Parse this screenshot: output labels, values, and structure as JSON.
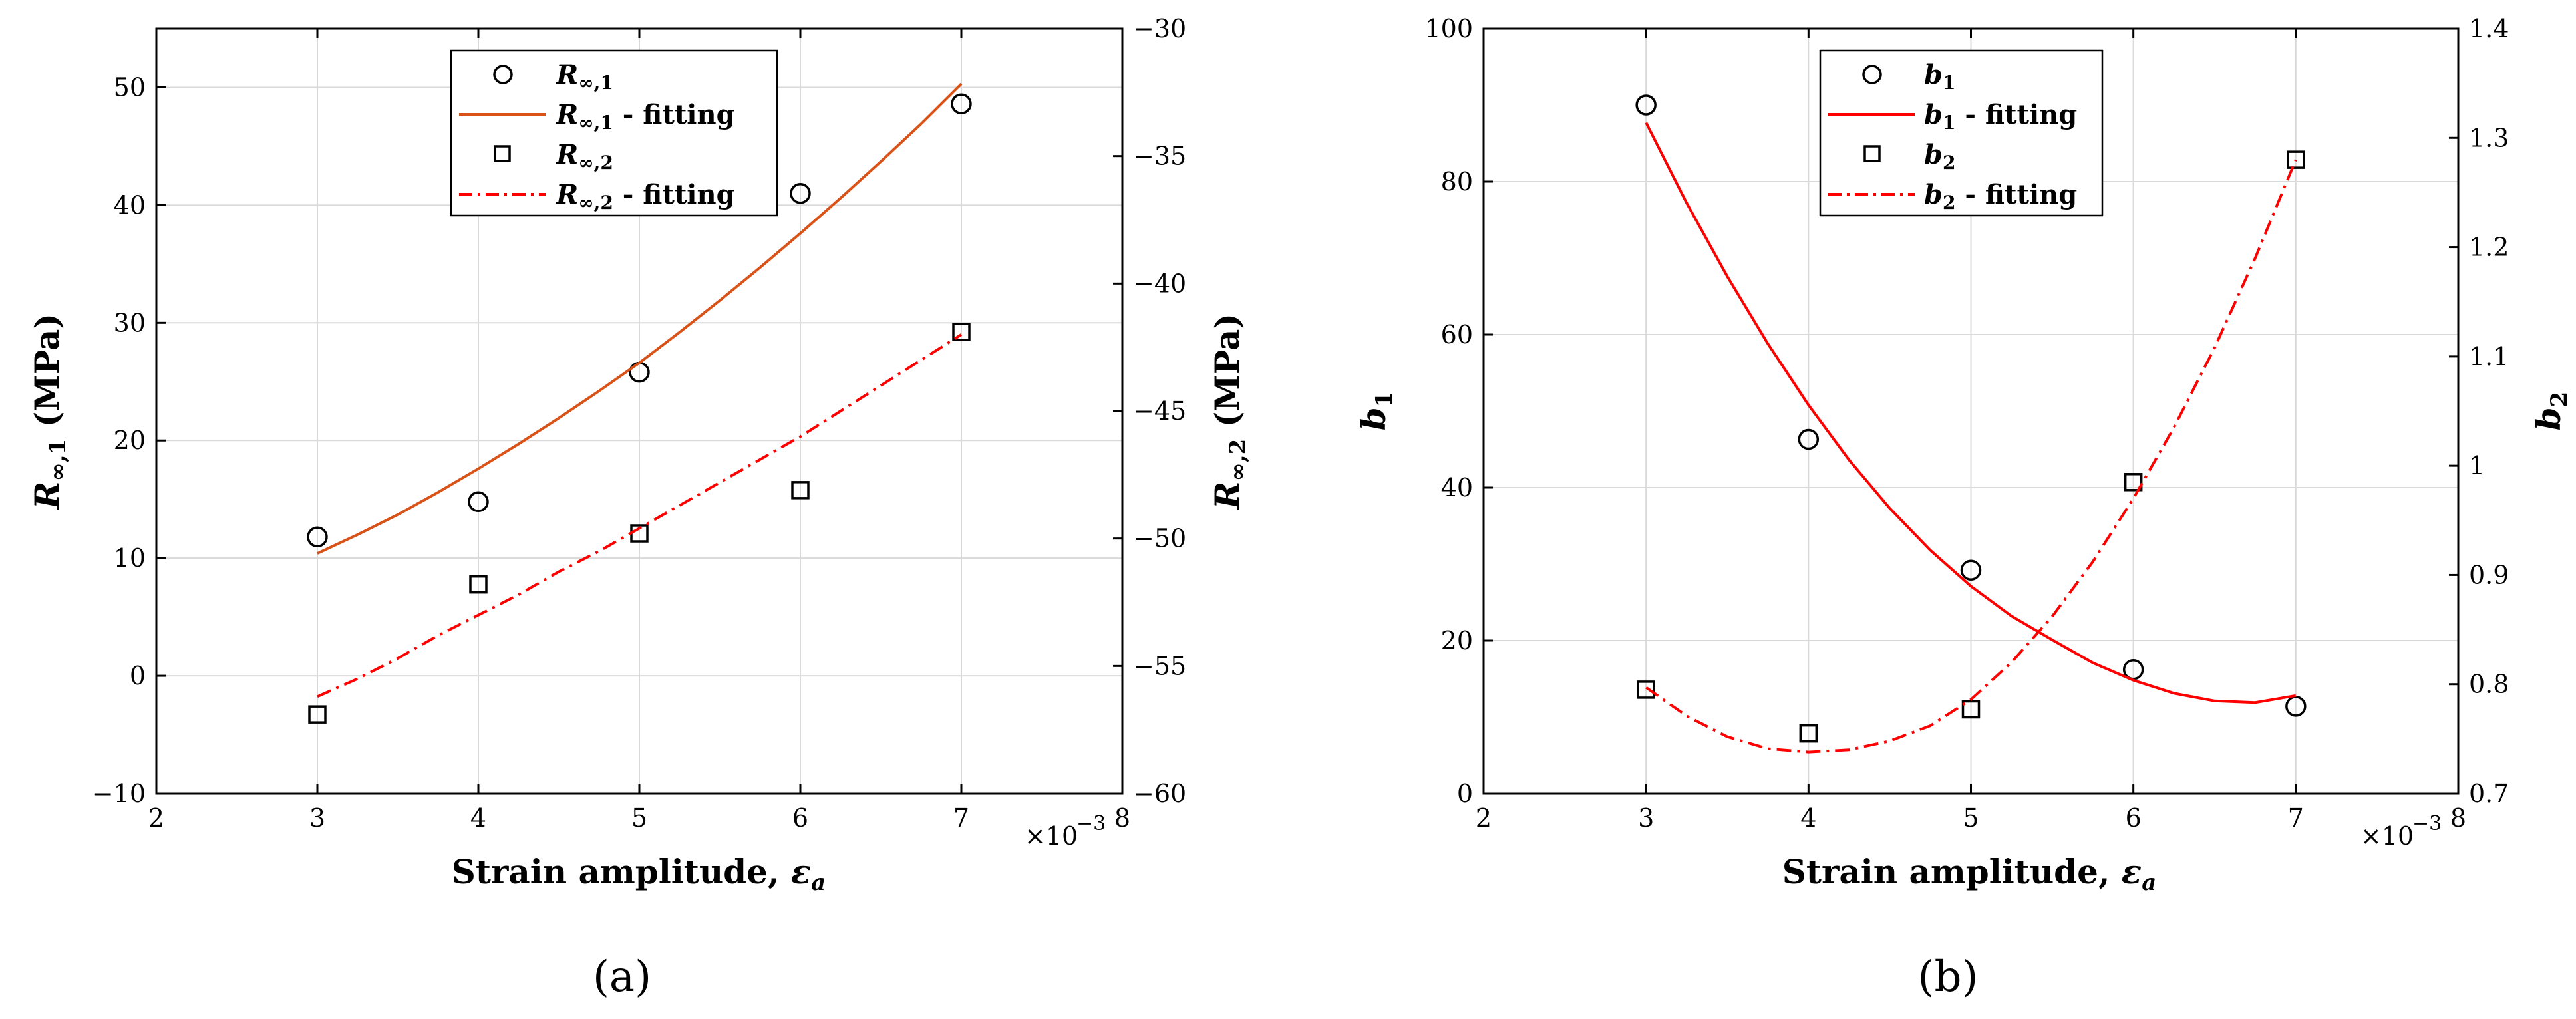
{
  "chart_data": [
    {
      "type": "scatter",
      "panel_label": "(a)",
      "xlabel": "Strain amplitude, ε_a",
      "x_multiplier": "×10^−3",
      "xlim": [
        2,
        8
      ],
      "xticks": [
        2,
        3,
        4,
        5,
        6,
        7,
        8
      ],
      "ylabel": "R_∞,1 (MPa)",
      "ylim": [
        -10,
        55
      ],
      "yticks": [
        -10,
        0,
        10,
        20,
        30,
        40,
        50
      ],
      "ylabel_right": "R_∞,2 (MPa)",
      "ylim_right": [
        -60,
        -30
      ],
      "yticks_right": [
        -60,
        -55,
        -50,
        -45,
        -40,
        -35,
        -30
      ],
      "grid": true,
      "legend_position": "top-center",
      "series": [
        {
          "name": "R_∞,1",
          "axis": "left",
          "style": "marker-circle",
          "x": [
            3,
            4,
            5,
            6,
            7
          ],
          "y": [
            11.8,
            14.8,
            25.8,
            41.0,
            48.6
          ]
        },
        {
          "name": "R_∞,1 - fitting",
          "axis": "left",
          "style": "line-solid",
          "color": "#d95319",
          "x": [
            3.0,
            3.25,
            3.5,
            3.75,
            4.0,
            4.25,
            4.5,
            4.75,
            5.0,
            5.25,
            5.5,
            5.75,
            6.0,
            6.25,
            6.5,
            6.75,
            7.0
          ],
          "y": [
            10.4,
            12.0,
            13.7,
            15.6,
            17.6,
            19.7,
            21.9,
            24.2,
            26.6,
            29.2,
            31.9,
            34.7,
            37.6,
            40.6,
            43.7,
            46.9,
            50.3
          ]
        },
        {
          "name": "R_∞,2",
          "axis": "right",
          "style": "marker-square",
          "x": [
            3,
            4,
            5,
            6,
            7
          ],
          "y": [
            -56.9,
            -51.8,
            -49.8,
            -48.1,
            -41.9
          ]
        },
        {
          "name": "R_∞,2 - fitting",
          "axis": "right",
          "style": "line-dashdot",
          "color": "#ff0000",
          "x": [
            3.0,
            3.25,
            3.5,
            3.75,
            4.0,
            4.25,
            4.5,
            4.75,
            5.0,
            5.25,
            5.5,
            5.75,
            6.0,
            6.25,
            6.5,
            6.75,
            7.0
          ],
          "y": [
            -56.2,
            -55.5,
            -54.7,
            -53.8,
            -53.0,
            -52.2,
            -51.3,
            -50.5,
            -49.6,
            -48.7,
            -47.8,
            -46.9,
            -46.0,
            -45.0,
            -44.0,
            -43.0,
            -42.0
          ]
        }
      ]
    },
    {
      "type": "scatter",
      "panel_label": "(b)",
      "xlabel": "Strain amplitude, ε_a",
      "x_multiplier": "×10^−3",
      "xlim": [
        2,
        8
      ],
      "xticks": [
        2,
        3,
        4,
        5,
        6,
        7,
        8
      ],
      "ylabel": "b_1",
      "ylim": [
        0,
        100
      ],
      "yticks": [
        0,
        20,
        40,
        60,
        80,
        100
      ],
      "ylabel_right": "b_2",
      "ylim_right": [
        0.7,
        1.4
      ],
      "yticks_right": [
        0.7,
        0.8,
        0.9,
        1,
        1.1,
        1.2,
        1.3,
        1.4
      ],
      "grid": true,
      "legend_position": "top-center",
      "series": [
        {
          "name": "b_1",
          "axis": "left",
          "style": "marker-circle",
          "x": [
            3,
            4,
            5,
            6,
            7
          ],
          "y": [
            90.0,
            46.3,
            29.2,
            16.2,
            11.4
          ]
        },
        {
          "name": "b_1 - fitting",
          "axis": "left",
          "style": "line-solid",
          "color": "#ff0000",
          "x": [
            3.0,
            3.25,
            3.5,
            3.75,
            4.0,
            4.25,
            4.5,
            4.75,
            5.0,
            5.25,
            5.5,
            5.75,
            6.0,
            6.25,
            6.5,
            6.75,
            7.0
          ],
          "y": [
            87.7,
            77.2,
            67.6,
            58.8,
            50.8,
            43.6,
            37.3,
            31.8,
            27.1,
            23.2,
            20.1,
            17.1,
            14.8,
            13.1,
            12.1,
            11.9,
            12.8
          ]
        },
        {
          "name": "b_2",
          "axis": "right",
          "style": "marker-square",
          "x": [
            3,
            4,
            5,
            6,
            7
          ],
          "y": [
            0.795,
            0.755,
            0.777,
            0.985,
            1.28
          ]
        },
        {
          "name": "b_2 - fitting",
          "axis": "right",
          "style": "line-dashdot",
          "color": "#ff0000",
          "x": [
            3.0,
            3.25,
            3.5,
            3.75,
            4.0,
            4.25,
            4.5,
            4.75,
            5.0,
            5.25,
            5.5,
            5.75,
            6.0,
            6.25,
            6.5,
            6.75,
            7.0
          ],
          "y": [
            0.797,
            0.771,
            0.752,
            0.741,
            0.738,
            0.74,
            0.748,
            0.762,
            0.786,
            0.82,
            0.862,
            0.912,
            0.97,
            1.035,
            1.108,
            1.19,
            1.28
          ]
        }
      ]
    }
  ]
}
